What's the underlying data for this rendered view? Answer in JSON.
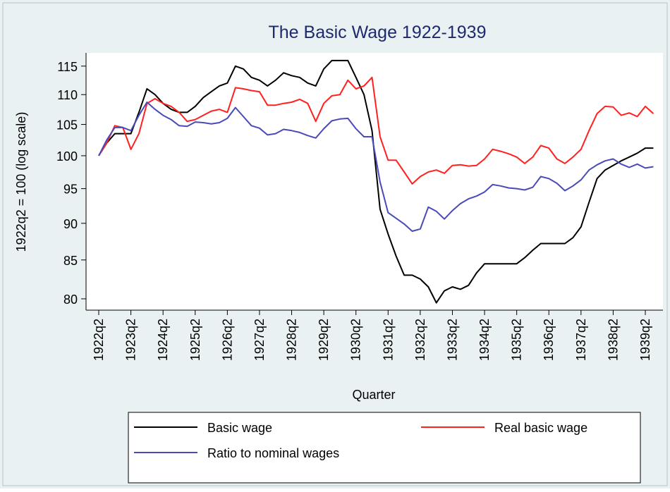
{
  "chart_data": {
    "type": "line",
    "title": "The Basic Wage 1922-1939",
    "y_label": "1922q2 = 100 (log scale)",
    "x_label": "Quarter",
    "log_scale": true,
    "grid": false,
    "legend_position": "bottom",
    "categories": [
      "1922q2",
      null,
      null,
      null,
      "1923q2",
      null,
      null,
      null,
      "1924q2",
      null,
      null,
      null,
      "1925q2",
      null,
      null,
      null,
      "1926q2",
      null,
      null,
      null,
      "1927q2",
      null,
      null,
      null,
      "1928q2",
      null,
      null,
      null,
      "1929q2",
      null,
      null,
      null,
      "1930q2",
      null,
      null,
      null,
      "1931q2",
      null,
      null,
      null,
      "1932q2",
      null,
      null,
      null,
      "1933q2",
      null,
      null,
      null,
      "1934q2",
      null,
      null,
      null,
      "1935q2",
      null,
      null,
      null,
      "1936q2",
      null,
      null,
      null,
      "1937q2",
      null,
      null,
      null,
      "1938q2",
      null,
      null,
      null,
      "1939q2",
      null
    ],
    "ylim": [
      78.6,
      117.4
    ],
    "yticks": [
      80,
      85,
      90,
      95,
      100,
      105,
      110,
      115
    ],
    "series": [
      {
        "name": "Basic wage",
        "color": "#000000",
        "values": [
          100,
          102,
          103.5,
          103.5,
          103.5,
          107,
          111,
          110,
          108.5,
          107.5,
          107,
          107,
          108,
          109.5,
          110.5,
          111.5,
          112,
          115,
          114.5,
          113,
          112.5,
          111.5,
          112.5,
          113.8,
          113.3,
          113,
          112,
          111.5,
          114.5,
          116,
          116,
          116,
          113,
          110,
          104,
          92,
          88.5,
          85.5,
          83,
          83,
          82.5,
          81.5,
          79.5,
          81,
          81.5,
          81.2,
          81.7,
          83.3,
          84.5,
          84.5,
          84.5,
          84.5,
          84.5,
          85.3,
          86.3,
          87.2,
          87.2,
          87.2,
          87.2,
          88,
          89.5,
          93,
          96.5,
          97.8,
          98.5,
          99.2,
          99.8,
          100.4,
          101.2,
          101.2
        ]
      },
      {
        "name": "Real basic wage",
        "color": "#ff2020",
        "values": [
          100,
          102,
          104.8,
          104.5,
          101,
          103.5,
          108.5,
          109.3,
          108.5,
          108,
          107,
          105.5,
          105.8,
          106.5,
          107.2,
          107.5,
          107,
          111.2,
          111,
          110.7,
          110.5,
          108.2,
          108.2,
          108.5,
          108.7,
          109.2,
          108.5,
          105.5,
          108.5,
          109.8,
          110,
          112.5,
          111,
          111.5,
          113,
          103,
          99.3,
          99.3,
          97.5,
          95.7,
          96.8,
          97.5,
          97.8,
          97.3,
          98.5,
          98.6,
          98.4,
          98.5,
          99.5,
          101,
          100.7,
          100.3,
          99.8,
          98.8,
          99.8,
          101.6,
          101.2,
          99.5,
          98.8,
          99.8,
          101,
          104,
          106.8,
          108,
          107.9,
          106.5,
          106.9,
          106.3,
          108,
          106.8
        ]
      },
      {
        "name": "Ratio to nominal wages",
        "color": "#4a4ab8",
        "values": [
          100,
          102.5,
          104.5,
          104.5,
          104,
          106.5,
          108.7,
          107.5,
          106.5,
          105.8,
          104.8,
          104.7,
          105.4,
          105.3,
          105.1,
          105.3,
          106,
          107.8,
          106.3,
          104.8,
          104.4,
          103.3,
          103.5,
          104.2,
          104,
          103.7,
          103.2,
          102.8,
          104.3,
          105.6,
          105.9,
          106,
          104.3,
          103,
          103,
          96,
          91.5,
          90.7,
          89.9,
          88.9,
          89.2,
          92.3,
          91.7,
          90.6,
          91.8,
          92.8,
          93.5,
          93.9,
          94.5,
          95.6,
          95.4,
          95.1,
          95,
          94.8,
          95.2,
          96.8,
          96.5,
          95.8,
          94.7,
          95.4,
          96.3,
          97.8,
          98.6,
          99.2,
          99.5,
          98.7,
          98.2,
          98.7,
          98.1,
          98.3
        ]
      }
    ]
  }
}
